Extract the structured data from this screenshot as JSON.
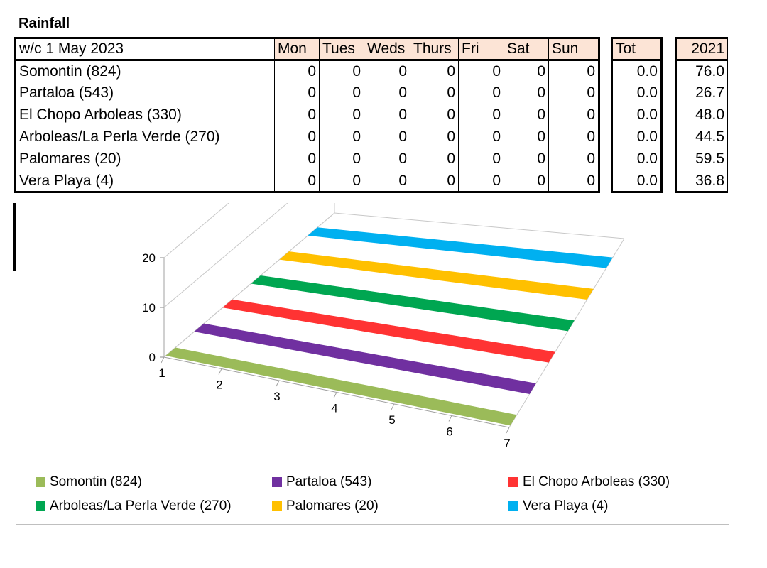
{
  "title": "Rainfall",
  "table": {
    "week_label": "w/c 1 May 2023",
    "days": [
      "Mon",
      "Tues",
      "Weds",
      "Thurs",
      "Fri",
      "Sat",
      "Sun"
    ],
    "tot_header": "Tot",
    "year_header": "2021",
    "rows": [
      {
        "name": "Somontin (824)",
        "values": [
          "0",
          "0",
          "0",
          "0",
          "0",
          "0",
          "0"
        ],
        "tot": "0.0",
        "year": "76.0"
      },
      {
        "name": "Partaloa (543)",
        "values": [
          "0",
          "0",
          "0",
          "0",
          "0",
          "0",
          "0"
        ],
        "tot": "0.0",
        "year": "26.7"
      },
      {
        "name": "El Chopo Arboleas (330)",
        "values": [
          "0",
          "0",
          "0",
          "0",
          "0",
          "0",
          "0"
        ],
        "tot": "0.0",
        "year": "48.0"
      },
      {
        "name": "Arboleas/La Perla Verde (270)",
        "values": [
          "0",
          "0",
          "0",
          "0",
          "0",
          "0",
          "0"
        ],
        "tot": "0.0",
        "year": "44.5"
      },
      {
        "name": "Palomares (20)",
        "values": [
          "0",
          "0",
          "0",
          "0",
          "0",
          "0",
          "0"
        ],
        "tot": "0.0",
        "year": "59.5"
      },
      {
        "name": "Vera Playa (4)",
        "values": [
          "0",
          "0",
          "0",
          "0",
          "0",
          "0",
          "0"
        ],
        "tot": "0.0",
        "year": "36.8"
      }
    ]
  },
  "chart_data": {
    "type": "bar",
    "style": "3d",
    "categories": [
      "1",
      "2",
      "3",
      "4",
      "5",
      "6",
      "7"
    ],
    "series": [
      {
        "name": "Somontin (824)",
        "values": [
          0,
          0,
          0,
          0,
          0,
          0,
          0
        ],
        "color": "#9bbb59"
      },
      {
        "name": "Partaloa (543)",
        "values": [
          0,
          0,
          0,
          0,
          0,
          0,
          0
        ],
        "color": "#7030a0"
      },
      {
        "name": "El Chopo Arboleas (330)",
        "values": [
          0,
          0,
          0,
          0,
          0,
          0,
          0
        ],
        "color": "#ff3333"
      },
      {
        "name": "Arboleas/La Perla Verde (270)",
        "values": [
          0,
          0,
          0,
          0,
          0,
          0,
          0
        ],
        "color": "#00a651"
      },
      {
        "name": "Palomares (20)",
        "values": [
          0,
          0,
          0,
          0,
          0,
          0,
          0
        ],
        "color": "#ffc000"
      },
      {
        "name": "Vera Playa (4)",
        "values": [
          0,
          0,
          0,
          0,
          0,
          0,
          0
        ],
        "color": "#00b0f0"
      }
    ],
    "yticks": [
      "0",
      "10",
      "20"
    ],
    "ylim": [
      0,
      20
    ],
    "legend_position": "bottom",
    "grid": true
  }
}
